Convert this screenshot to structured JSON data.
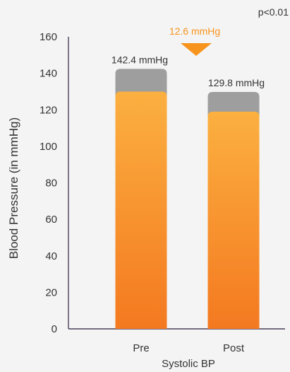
{
  "chart_data": {
    "type": "bar",
    "categories": [
      "Pre",
      "Post"
    ],
    "xlabel": "Systolic BP",
    "ylabel": "Blood Pressure (in mmHg)",
    "ylim": [
      0,
      160
    ],
    "yticks": [
      0,
      20,
      40,
      60,
      80,
      100,
      120,
      140,
      160
    ],
    "yticks_labels": [
      "0",
      "20",
      "40",
      "60",
      "80",
      "100",
      "120",
      "140",
      "160"
    ],
    "grid": false,
    "series": [
      {
        "values": [
          142.4,
          129.8
        ],
        "color": "#9e9e9e"
      },
      {
        "values": [
          130,
          119
        ],
        "color": "#f7941d"
      }
    ],
    "value_labels": [
      "142.4 mmHg",
      "129.8 mmHg"
    ],
    "annotation": {
      "text": "12.6 mmHg",
      "color": "#f7941d",
      "icon": "down-triangle-icon"
    },
    "p_value": "p<0.01"
  }
}
